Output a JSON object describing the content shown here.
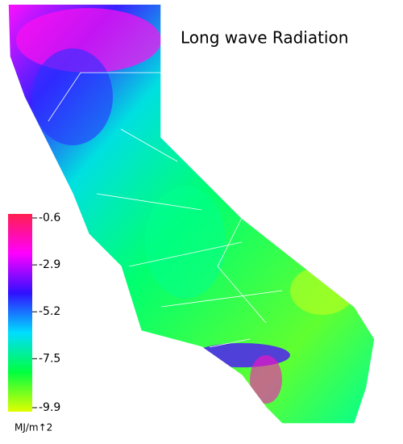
{
  "title": "Long wave Radiation",
  "colorbar": {
    "lim": [
      -9.9,
      -0.6
    ],
    "ticks": [
      -0.6,
      -2.9,
      -5.2,
      -7.5,
      -9.9
    ],
    "unit": "MJ/m↑2",
    "colors": [
      "#ff1f4f",
      "#ff00ff",
      "#3010ff",
      "#00ddff",
      "#00ff40",
      "#e0ff00"
    ]
  }
}
